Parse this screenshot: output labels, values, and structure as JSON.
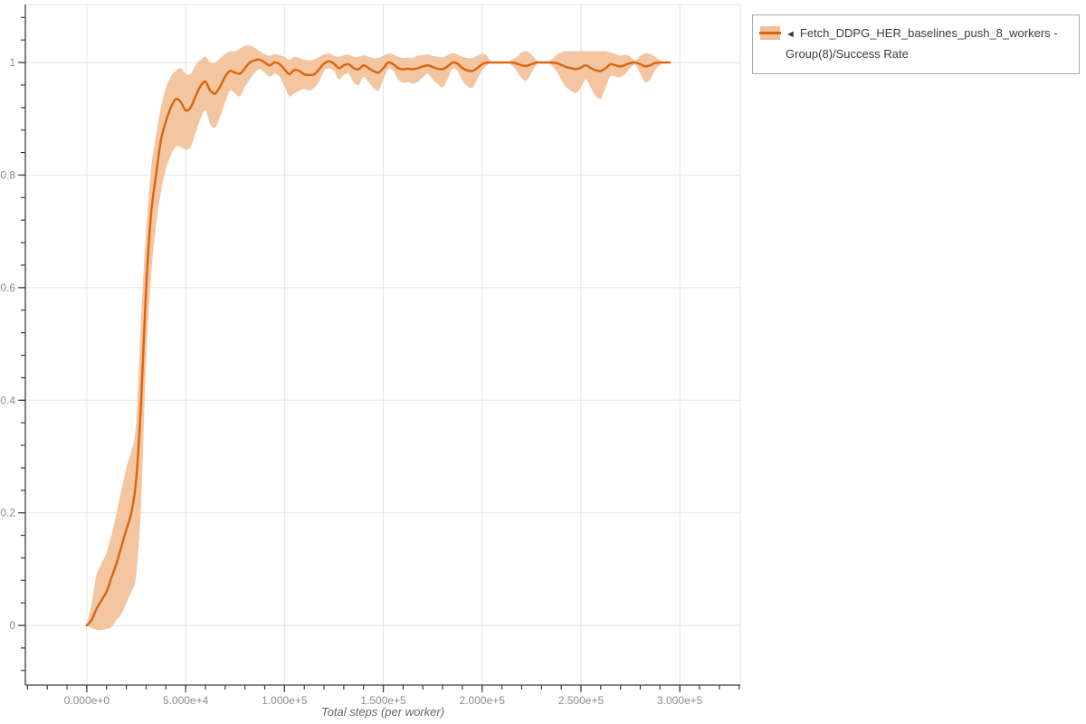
{
  "colors": {
    "background": "#ffffff",
    "grid": "#e4e4e4",
    "plot_border": "#e4e4e4",
    "axis": "#3c3c3c",
    "tick_label": "#8c8c8c",
    "axis_title": "#666666",
    "legend_border": "#a9a9a9",
    "legend_text": "#3b3b3b"
  },
  "legend": {
    "collapse_icon": "◄",
    "series_label": "Fetch_DDPG_HER_baselines_push_8_workers - Group(8)/Success Rate",
    "swatch_band_color": "#f2bf97",
    "swatch_line_color": "#d9650e"
  },
  "chart_data": {
    "type": "line",
    "title": "",
    "xlabel": "Total steps (per worker)",
    "ylabel": "",
    "grid": true,
    "legend_position": "top-right-outside",
    "xlim": [
      -31100,
      330600
    ],
    "ylim": [
      -0.106,
      1.103
    ],
    "xticks": [
      {
        "value": 0,
        "label": "0.000e+0"
      },
      {
        "value": 50000,
        "label": "5.000e+4"
      },
      {
        "value": 100000,
        "label": "1.000e+5"
      },
      {
        "value": 150000,
        "label": "1.500e+5"
      },
      {
        "value": 200000,
        "label": "2.000e+5"
      },
      {
        "value": 250000,
        "label": "2.500e+5"
      },
      {
        "value": 300000,
        "label": "3.000e+5"
      }
    ],
    "yticks": [
      {
        "value": 0,
        "label": "0"
      },
      {
        "value": 0.2,
        "label": "0.2"
      },
      {
        "value": 0.4,
        "label": "0.4"
      },
      {
        "value": 0.6,
        "label": "0.6"
      },
      {
        "value": 0.8,
        "label": "0.8"
      },
      {
        "value": 1,
        "label": "1"
      }
    ],
    "x_minor_step": 10000,
    "y_minor_step": 0.04,
    "series": [
      {
        "name": "Fetch_DDPG_HER_baselines_push_8_workers - Group(8)/Success Rate",
        "line_color": "#d9650e",
        "band_color": "#f3c5a0",
        "x": [
          0,
          2500,
          5000,
          7500,
          10000,
          12500,
          15000,
          17500,
          20000,
          22500,
          25000,
          27500,
          30000,
          32500,
          35000,
          37500,
          40000,
          42500,
          45000,
          47500,
          50000,
          52500,
          55000,
          57500,
          60000,
          62500,
          65000,
          67500,
          70000,
          72500,
          75000,
          77500,
          80000,
          82500,
          85000,
          87500,
          90000,
          92500,
          95000,
          97500,
          100000,
          102500,
          105000,
          107500,
          110000,
          112500,
          115000,
          117500,
          120000,
          122500,
          125000,
          127500,
          130000,
          132500,
          135000,
          137500,
          140000,
          142500,
          145000,
          147500,
          150000,
          152500,
          155000,
          157500,
          160000,
          162500,
          165000,
          167500,
          170000,
          172500,
          175000,
          177500,
          180000,
          182500,
          185000,
          187500,
          190000,
          192500,
          195000,
          197500,
          200000,
          202500,
          205000,
          207500,
          210000,
          212500,
          215000,
          217500,
          220000,
          222500,
          225000,
          227500,
          230000,
          232500,
          235000,
          237500,
          240000,
          242500,
          245000,
          247500,
          250000,
          252500,
          255000,
          257500,
          260000,
          262500,
          265000,
          267500,
          270000,
          272500,
          275000,
          277500,
          280000,
          282500,
          285000,
          287500,
          290000,
          292500,
          295000
        ],
        "mean": [
          0.0,
          0.01,
          0.03,
          0.045,
          0.06,
          0.085,
          0.11,
          0.14,
          0.17,
          0.2,
          0.26,
          0.4,
          0.6,
          0.73,
          0.8,
          0.862,
          0.895,
          0.92,
          0.935,
          0.93,
          0.915,
          0.92,
          0.94,
          0.958,
          0.966,
          0.95,
          0.945,
          0.958,
          0.975,
          0.985,
          0.982,
          0.98,
          0.99,
          1.0,
          1.004,
          1.005,
          1.0,
          0.995,
          1.0,
          0.997,
          0.988,
          0.979,
          0.987,
          0.985,
          0.979,
          0.978,
          0.979,
          0.988,
          0.998,
          1.002,
          0.998,
          0.99,
          0.995,
          0.997,
          0.99,
          0.988,
          0.995,
          0.99,
          0.985,
          0.982,
          0.99,
          1.0,
          0.997,
          0.99,
          0.988,
          0.989,
          0.988,
          0.99,
          0.993,
          0.995,
          0.992,
          0.989,
          0.988,
          0.993,
          1.0,
          0.998,
          0.99,
          0.986,
          0.985,
          0.99,
          0.997,
          1.0,
          1.0,
          1.0,
          1.0,
          1.0,
          1.0,
          0.998,
          0.995,
          0.994,
          0.997,
          1.0,
          1.0,
          1.0,
          1.0,
          0.999,
          0.996,
          0.992,
          0.99,
          0.988,
          0.991,
          0.995,
          0.99,
          0.986,
          0.985,
          0.99,
          0.997,
          0.995,
          0.993,
          0.996,
          0.999,
          1.0,
          0.997,
          0.993,
          0.995,
          0.999,
          1.0,
          1.0,
          1.0
        ],
        "band_low": [
          0.0,
          -0.005,
          -0.008,
          -0.008,
          -0.006,
          -0.003,
          0.01,
          0.02,
          0.04,
          0.06,
          0.09,
          0.22,
          0.47,
          0.62,
          0.71,
          0.77,
          0.81,
          0.835,
          0.85,
          0.85,
          0.845,
          0.85,
          0.875,
          0.9,
          0.915,
          0.89,
          0.885,
          0.905,
          0.93,
          0.95,
          0.945,
          0.94,
          0.957,
          0.97,
          0.982,
          0.988,
          0.982,
          0.975,
          0.98,
          0.975,
          0.957,
          0.94,
          0.945,
          0.95,
          0.953,
          0.95,
          0.955,
          0.966,
          0.985,
          0.99,
          0.985,
          0.97,
          0.978,
          0.98,
          0.965,
          0.96,
          0.975,
          0.965,
          0.955,
          0.95,
          0.97,
          0.988,
          0.985,
          0.97,
          0.964,
          0.965,
          0.962,
          0.966,
          0.974,
          0.98,
          0.97,
          0.962,
          0.956,
          0.97,
          0.989,
          0.985,
          0.968,
          0.958,
          0.955,
          0.97,
          0.986,
          0.995,
          1.0,
          1.0,
          1.0,
          1.0,
          0.995,
          0.985,
          0.972,
          0.968,
          0.982,
          0.996,
          1.0,
          1.0,
          0.995,
          0.985,
          0.97,
          0.956,
          0.95,
          0.946,
          0.956,
          0.97,
          0.955,
          0.94,
          0.936,
          0.956,
          0.976,
          0.975,
          0.974,
          0.98,
          0.99,
          0.996,
          0.98,
          0.965,
          0.97,
          0.986,
          0.996,
          1.0,
          1.0
        ],
        "band_high": [
          0.0,
          0.04,
          0.09,
          0.11,
          0.13,
          0.16,
          0.2,
          0.24,
          0.28,
          0.31,
          0.36,
          0.55,
          0.7,
          0.81,
          0.87,
          0.92,
          0.955,
          0.975,
          0.985,
          0.99,
          0.98,
          0.98,
          0.995,
          1.005,
          1.01,
          1.0,
          1.0,
          1.008,
          1.015,
          1.02,
          1.02,
          1.025,
          1.03,
          1.03,
          1.026,
          1.02,
          1.015,
          1.012,
          1.015,
          1.013,
          1.01,
          1.005,
          1.01,
          1.008,
          1.005,
          1.004,
          1.005,
          1.01,
          1.014,
          1.016,
          1.012,
          1.01,
          1.013,
          1.014,
          1.01,
          1.01,
          1.013,
          1.01,
          1.008,
          1.008,
          1.012,
          1.016,
          1.014,
          1.01,
          1.008,
          1.009,
          1.008,
          1.012,
          1.013,
          1.014,
          1.012,
          1.01,
          1.009,
          1.013,
          1.017,
          1.014,
          1.01,
          1.008,
          1.008,
          1.012,
          1.016,
          1.012,
          1.0,
          1.0,
          1.0,
          1.0,
          1.005,
          1.01,
          1.018,
          1.02,
          1.014,
          1.004,
          1.0,
          1.0,
          1.005,
          1.013,
          1.018,
          1.02,
          1.02,
          1.02,
          1.02,
          1.02,
          1.02,
          1.02,
          1.02,
          1.02,
          1.018,
          1.015,
          1.012,
          1.014,
          1.01,
          1.004,
          1.012,
          1.016,
          1.015,
          1.01,
          1.004,
          1.0,
          1.0
        ]
      }
    ]
  }
}
